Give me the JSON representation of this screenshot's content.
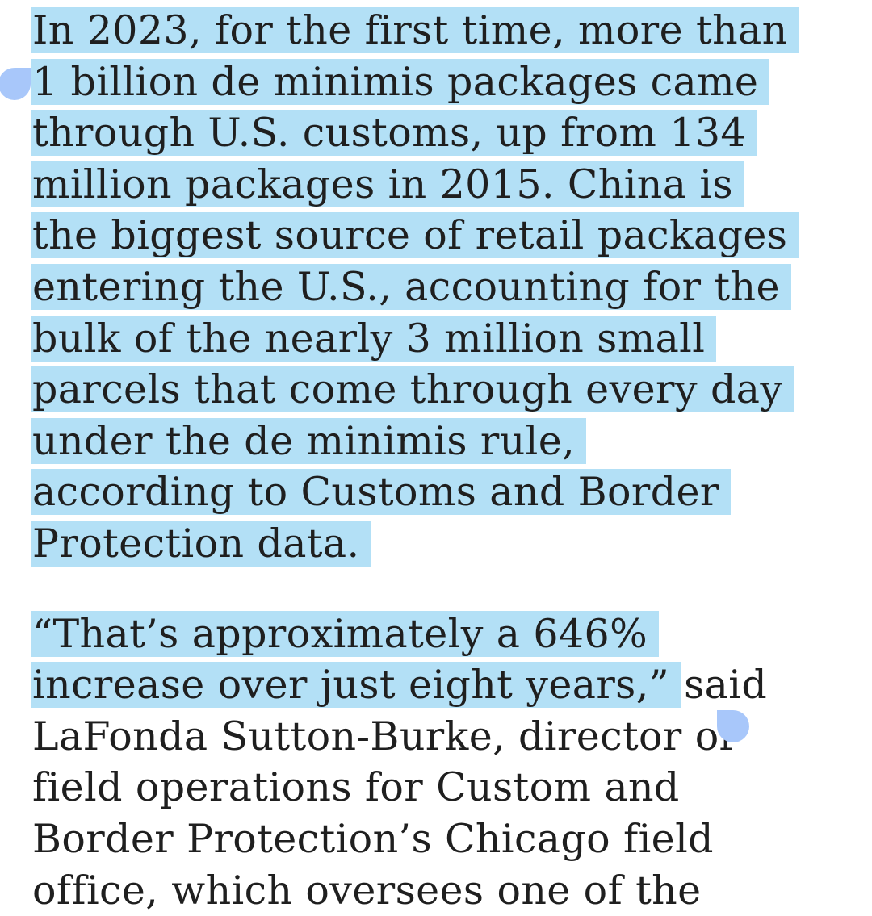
{
  "paragraph1": {
    "lines": [
      "In 2023, for the first time, more than",
      "1 billion de minimis packages came",
      "through U.S. customs, up from 134",
      "million packages in 2015. China is",
      "the biggest source of retail packages",
      "entering the U.S., accounting for the",
      "bulk of the nearly 3 million small",
      "parcels that come through every day",
      "under the de minimis rule,",
      "according to Customs and Border",
      "Protection data."
    ]
  },
  "paragraph2": {
    "line1": "“That’s approximately a 646%",
    "line2_highlighted": "increase over just eight years,”",
    "line2_rest": " said",
    "line3": "LaFonda Sutton-Burke, director of",
    "line4": "field operations for Custom and",
    "line5": "Border Protection’s Chicago field",
    "line6": "office, which oversees one of the"
  },
  "selection": {
    "highlight_color": "#b3e0f6",
    "handle_color": "#a8c7fa"
  }
}
